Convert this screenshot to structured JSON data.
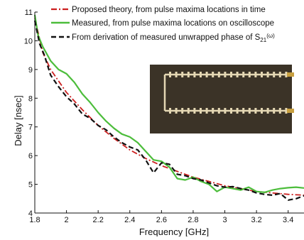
{
  "chart_data": {
    "type": "line",
    "xlabel": "Frequency [GHz]",
    "ylabel": "Delay [nsec]",
    "xlim": [
      1.8,
      3.5
    ],
    "ylim": [
      4,
      11
    ],
    "xticks": [
      1.8,
      2,
      2.2,
      2.4,
      2.6,
      2.8,
      3,
      3.2,
      3.4
    ],
    "xtick_labels": [
      "1.8",
      "2",
      "2.2",
      "2.4",
      "2.6",
      "2.8",
      "3",
      "3.2",
      "3.4"
    ],
    "yticks": [
      4,
      5,
      6,
      7,
      8,
      9,
      10,
      11
    ],
    "ytick_labels": [
      "4",
      "5",
      "6",
      "7",
      "8",
      "9",
      "10",
      "11"
    ],
    "grid": false,
    "legend_position": "top-right",
    "inset_photo": {
      "description_icon": "photo-inset-icon",
      "background": "#3b3327",
      "trace": "#e4d7b3"
    },
    "series": [
      {
        "name": "Proposed theory, from pulse maxima locations in time",
        "color": "#cc1f1f",
        "style": "dashdot",
        "x": [
          1.8,
          1.85,
          1.9,
          1.95,
          2.0,
          2.1,
          2.2,
          2.3,
          2.4,
          2.5,
          2.6,
          2.7,
          2.8,
          2.9,
          3.0,
          3.1,
          3.2,
          3.3,
          3.4,
          3.5
        ],
        "y": [
          10.8,
          9.6,
          9.0,
          8.6,
          8.2,
          7.6,
          7.05,
          6.6,
          6.2,
          5.9,
          5.65,
          5.45,
          5.25,
          5.1,
          4.95,
          4.85,
          4.75,
          4.7,
          4.65,
          4.62
        ]
      },
      {
        "name": "Measured, from pulse maxima locations on oscilloscope",
        "color": "#4cbd3b",
        "style": "solid",
        "x": [
          1.8,
          1.82,
          1.85,
          1.9,
          1.95,
          2.0,
          2.05,
          2.1,
          2.15,
          2.2,
          2.25,
          2.3,
          2.35,
          2.4,
          2.45,
          2.5,
          2.55,
          2.6,
          2.65,
          2.7,
          2.75,
          2.8,
          2.85,
          2.9,
          2.95,
          3.0,
          3.05,
          3.1,
          3.15,
          3.2,
          3.25,
          3.3,
          3.35,
          3.4,
          3.45,
          3.5
        ],
        "y": [
          10.9,
          10.2,
          9.8,
          9.3,
          9.0,
          8.85,
          8.55,
          8.15,
          7.85,
          7.5,
          7.2,
          6.95,
          6.75,
          6.65,
          6.45,
          6.15,
          5.85,
          5.8,
          5.6,
          5.2,
          5.15,
          5.25,
          5.1,
          5.0,
          4.75,
          4.9,
          4.85,
          4.8,
          4.9,
          4.75,
          4.72,
          4.8,
          4.85,
          4.88,
          4.9,
          4.87
        ]
      },
      {
        "name": "From derivation of measured unwrapped phase of S21(ω)",
        "color": "#111111",
        "style": "dashed",
        "x": [
          1.8,
          1.83,
          1.86,
          1.9,
          1.95,
          2.0,
          2.05,
          2.1,
          2.15,
          2.2,
          2.25,
          2.3,
          2.35,
          2.4,
          2.45,
          2.5,
          2.55,
          2.6,
          2.65,
          2.7,
          2.75,
          2.8,
          2.85,
          2.9,
          2.95,
          3.0,
          3.05,
          3.1,
          3.15,
          3.2,
          3.25,
          3.3,
          3.35,
          3.4,
          3.45,
          3.5
        ],
        "y": [
          10.7,
          9.9,
          9.5,
          8.8,
          8.4,
          8.05,
          7.8,
          7.45,
          7.3,
          7.05,
          6.9,
          6.65,
          6.45,
          6.3,
          6.2,
          5.85,
          5.4,
          5.75,
          5.7,
          5.35,
          5.3,
          5.2,
          5.15,
          5.05,
          4.95,
          4.9,
          4.92,
          4.85,
          4.8,
          4.7,
          4.65,
          4.62,
          4.68,
          4.45,
          4.5,
          4.6
        ]
      }
    ]
  }
}
